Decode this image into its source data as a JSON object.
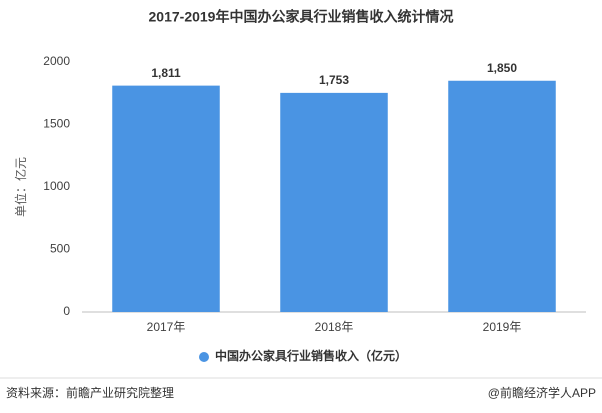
{
  "chart_data": {
    "type": "bar",
    "title": "2017-2019年中国办公家具行业销售收入统计情况",
    "y_label": "单位：亿元",
    "categories": [
      "2017年",
      "2018年",
      "2019年"
    ],
    "series": [
      {
        "name": "中国办公家具行业销售收入（亿元）",
        "color": "#4a94e3",
        "values": [
          1811,
          1753,
          1850
        ],
        "value_labels": [
          "1,811",
          "1,753",
          "1,850"
        ]
      }
    ],
    "ylim": [
      0,
      2000
    ],
    "yticks": [
      0,
      500,
      1000,
      1500,
      2000
    ],
    "grid": false,
    "legend": "bottom"
  },
  "footer": {
    "source": "资料来源：前瞻产业研究院整理",
    "credit": "@前瞻经济学人APP"
  }
}
